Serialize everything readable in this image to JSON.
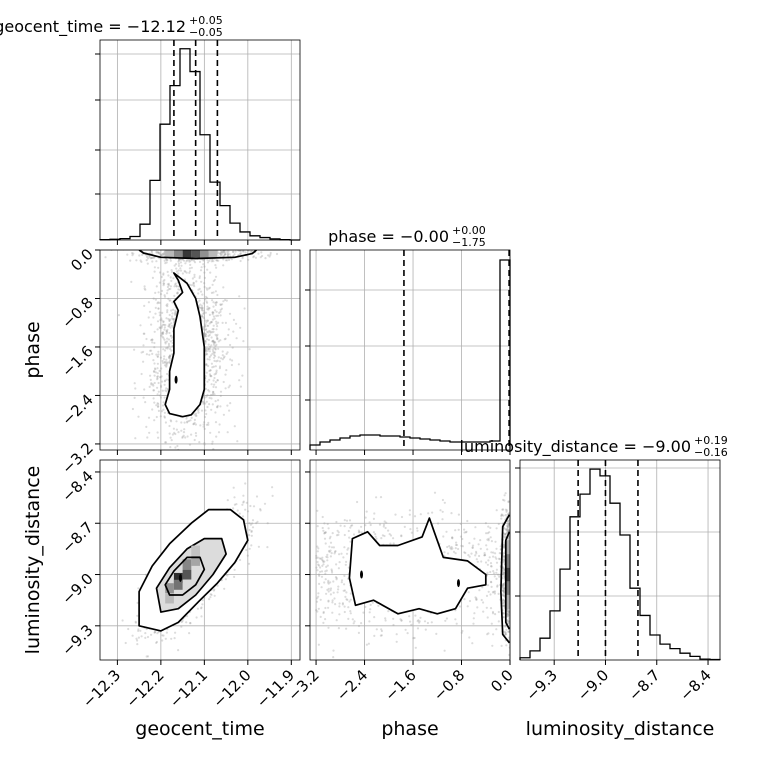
{
  "figure": {
    "type": "corner_plot",
    "background": "#ffffff",
    "colors": {
      "ink": "#000000",
      "grid": "#b0b0b0",
      "point": "#9a9a9a"
    }
  },
  "chart_data": [
    {
      "type": "histogram",
      "panel": "geocent_time",
      "title_main": "geocent_time = −12.12",
      "title_sup": "+0.05",
      "title_sub": "−0.05",
      "xlim": [
        -12.34,
        -11.88
      ],
      "bin_edges": [
        -12.34,
        -12.317,
        -12.294,
        -12.271,
        -12.248,
        -12.225,
        -12.202,
        -12.179,
        -12.156,
        -12.133,
        -12.11,
        -12.087,
        -12.064,
        -12.041,
        -12.018,
        -11.995,
        -11.972,
        -11.949,
        -11.926,
        -11.903,
        -11.88
      ],
      "counts": [
        1,
        2,
        4,
        10,
        45,
        170,
        330,
        440,
        545,
        480,
        300,
        165,
        98,
        48,
        23,
        12,
        7,
        3,
        1,
        0
      ],
      "ymax": 570,
      "quantiles": [
        -12.17,
        -12.12,
        -12.07
      ]
    },
    {
      "type": "histogram",
      "panel": "phase",
      "title_main": "phase = −0.00",
      "title_sup": "+0.00",
      "title_sub": "−1.75",
      "xlim": [
        -3.3,
        0.0
      ],
      "bin_edges": [
        -3.3,
        -3.135,
        -2.97,
        -2.805,
        -2.64,
        -2.475,
        -2.31,
        -2.145,
        -1.98,
        -1.815,
        -1.65,
        -1.485,
        -1.32,
        -1.155,
        -0.99,
        -0.825,
        -0.66,
        -0.495,
        -0.33,
        -0.165,
        0.0
      ],
      "counts": [
        5,
        8,
        10,
        12,
        14,
        15,
        15,
        14,
        14,
        13,
        12,
        11,
        10,
        9,
        8,
        8,
        8,
        8,
        9,
        190
      ],
      "ymax": 200,
      "quantiles": [
        -1.75,
        0.0,
        0.0
      ]
    },
    {
      "type": "histogram",
      "panel": "luminosity_distance",
      "title_main": "luminosity_distance = −9.00",
      "title_sup": "+0.19",
      "title_sub": "−0.16",
      "xlim": [
        -9.5,
        -8.33
      ],
      "bin_edges": [
        -9.5,
        -9.4415,
        -9.383,
        -9.3245,
        -9.266,
        -9.2075,
        -9.149,
        -9.0905,
        -9.032,
        -8.9735,
        -8.915,
        -8.8565,
        -8.798,
        -8.7395,
        -8.681,
        -8.6225,
        -8.564,
        -8.5055,
        -8.447,
        -8.3885,
        -8.33
      ],
      "counts": [
        5,
        20,
        48,
        108,
        200,
        315,
        365,
        420,
        405,
        345,
        275,
        158,
        98,
        55,
        35,
        25,
        15,
        8,
        2,
        1
      ],
      "ymax": 440,
      "quantiles": [
        -9.16,
        -9.0,
        -8.81
      ]
    },
    {
      "type": "scatter_contour",
      "panel": "phase vs geocent_time",
      "x": "geocent_time",
      "y": "phase",
      "xlim": [
        -12.34,
        -11.88
      ],
      "ylim": [
        -3.3,
        0.0
      ],
      "outer_contour": [
        [
          -12.17,
          -0.38
        ],
        [
          -12.14,
          -0.55
        ],
        [
          -12.12,
          -0.8
        ],
        [
          -12.11,
          -1.1
        ],
        [
          -12.1,
          -1.6
        ],
        [
          -12.1,
          -2.1
        ],
        [
          -12.1,
          -2.3
        ],
        [
          -12.11,
          -2.55
        ],
        [
          -12.13,
          -2.72
        ],
        [
          -12.15,
          -2.75
        ],
        [
          -12.18,
          -2.7
        ],
        [
          -12.19,
          -2.55
        ],
        [
          -12.18,
          -2.3
        ],
        [
          -12.18,
          -2.0
        ],
        [
          -12.17,
          -1.7
        ],
        [
          -12.17,
          -1.3
        ],
        [
          -12.16,
          -1.0
        ],
        [
          -12.17,
          -0.85
        ],
        [
          -12.15,
          -0.7
        ],
        [
          -12.16,
          -0.5
        ]
      ],
      "top_band": [
        [
          -12.25,
          0.0
        ],
        [
          -12.24,
          -0.05
        ],
        [
          -12.2,
          -0.12
        ],
        [
          -12.12,
          -0.14
        ],
        [
          -12.03,
          -0.12
        ],
        [
          -11.99,
          -0.06
        ],
        [
          -11.98,
          0.0
        ]
      ],
      "inner_marks": [
        [
          -12.165,
          -2.14
        ]
      ],
      "density_blocks": [
        {
          "x": -12.14,
          "y": -0.05,
          "w": 0.02,
          "level": 0.9
        },
        {
          "x": -12.12,
          "y": -0.05,
          "w": 0.02,
          "level": 0.75
        },
        {
          "x": -12.16,
          "y": -0.05,
          "w": 0.02,
          "level": 0.5
        },
        {
          "x": -12.1,
          "y": -0.05,
          "w": 0.02,
          "level": 0.45
        },
        {
          "x": -12.18,
          "y": -0.05,
          "w": 0.02,
          "level": 0.25
        },
        {
          "x": -12.08,
          "y": -0.05,
          "w": 0.02,
          "level": 0.25
        }
      ],
      "scatter": {
        "mean": [
          -12.14,
          -1.6
        ],
        "spread": [
          0.045,
          0.75
        ],
        "n": 1500,
        "band_mean": [
          -12.12,
          -0.06
        ],
        "band_spread": [
          0.07,
          0.06
        ],
        "band_n": 500
      }
    },
    {
      "type": "scatter_contour",
      "panel": "luminosity_distance vs geocent_time",
      "x": "geocent_time",
      "y": "luminosity_distance",
      "xlim": [
        -12.34,
        -11.88
      ],
      "ylim": [
        -9.5,
        -8.33
      ],
      "contours": [
        [
          [
            -12.25,
            -9.3
          ],
          [
            -12.2,
            -9.33
          ],
          [
            -12.16,
            -9.28
          ],
          [
            -12.11,
            -9.15
          ],
          [
            -12.07,
            -9.05
          ],
          [
            -12.03,
            -8.93
          ],
          [
            -12.0,
            -8.8
          ],
          [
            -12.01,
            -8.68
          ],
          [
            -12.04,
            -8.62
          ],
          [
            -12.09,
            -8.62
          ],
          [
            -12.13,
            -8.7
          ],
          [
            -12.18,
            -8.82
          ],
          [
            -12.22,
            -8.95
          ],
          [
            -12.25,
            -9.1
          ]
        ],
        [
          [
            -12.2,
            -9.22
          ],
          [
            -12.16,
            -9.2
          ],
          [
            -12.12,
            -9.12
          ],
          [
            -12.08,
            -9.0
          ],
          [
            -12.05,
            -8.88
          ],
          [
            -12.06,
            -8.79
          ],
          [
            -12.1,
            -8.79
          ],
          [
            -12.14,
            -8.85
          ],
          [
            -12.18,
            -8.96
          ],
          [
            -12.21,
            -9.08
          ]
        ],
        [
          [
            -12.18,
            -9.12
          ],
          [
            -12.15,
            -9.12
          ],
          [
            -12.12,
            -9.06
          ],
          [
            -12.1,
            -8.97
          ],
          [
            -12.11,
            -8.9
          ],
          [
            -12.14,
            -8.9
          ],
          [
            -12.17,
            -8.98
          ],
          [
            -12.19,
            -9.06
          ]
        ]
      ],
      "inner_marks": [
        [
          -12.155,
          -9.02
        ]
      ],
      "density_blocks": [
        {
          "x": -12.16,
          "y": -9.02,
          "w": 0.02,
          "level": 0.95
        },
        {
          "x": -12.14,
          "y": -9.0,
          "w": 0.02,
          "level": 0.75
        },
        {
          "x": -12.16,
          "y": -9.06,
          "w": 0.02,
          "level": 0.6
        },
        {
          "x": -12.14,
          "y": -8.94,
          "w": 0.02,
          "level": 0.5
        },
        {
          "x": -12.18,
          "y": -9.08,
          "w": 0.02,
          "level": 0.45
        },
        {
          "x": -12.12,
          "y": -8.92,
          "w": 0.02,
          "level": 0.35
        },
        {
          "x": -12.18,
          "y": -9.14,
          "w": 0.02,
          "level": 0.25
        },
        {
          "x": -12.12,
          "y": -8.86,
          "w": 0.02,
          "level": 0.2
        }
      ],
      "scatter": {
        "mean": [
          -12.12,
          -8.99
        ],
        "spread": [
          0.055,
          0.16
        ],
        "corr": 0.8,
        "n": 1700
      }
    },
    {
      "type": "scatter_contour",
      "panel": "luminosity_distance vs phase",
      "x": "phase",
      "y": "luminosity_distance",
      "xlim": [
        -3.3,
        0.0
      ],
      "ylim": [
        -9.5,
        -8.33
      ],
      "outer_contour": [
        [
          -2.6,
          -8.79
        ],
        [
          -2.35,
          -8.75
        ],
        [
          -2.15,
          -8.83
        ],
        [
          -1.85,
          -8.83
        ],
        [
          -1.45,
          -8.78
        ],
        [
          -1.33,
          -8.67
        ],
        [
          -1.25,
          -8.75
        ],
        [
          -1.1,
          -8.9
        ],
        [
          -0.7,
          -8.92
        ],
        [
          -0.4,
          -9.0
        ],
        [
          -0.4,
          -9.06
        ],
        [
          -0.7,
          -9.08
        ],
        [
          -0.9,
          -9.2
        ],
        [
          -1.2,
          -9.23
        ],
        [
          -1.5,
          -9.2
        ],
        [
          -1.85,
          -9.23
        ],
        [
          -2.25,
          -9.15
        ],
        [
          -2.55,
          -9.18
        ],
        [
          -2.65,
          -9.02
        ]
      ],
      "edge_band": [
        [
          -0.01,
          -8.65
        ],
        [
          -0.12,
          -8.72
        ],
        [
          -0.15,
          -9.1
        ],
        [
          -0.12,
          -9.35
        ],
        [
          -0.01,
          -9.4
        ]
      ],
      "edge_inner": [
        [
          -0.01,
          -8.75
        ],
        [
          -0.07,
          -8.8
        ],
        [
          -0.07,
          -9.28
        ],
        [
          -0.01,
          -9.32
        ]
      ],
      "inner_marks": [
        [
          -2.45,
          -9.0
        ],
        [
          -0.85,
          -9.05
        ]
      ],
      "density_blocks": [
        {
          "x": -0.04,
          "y": -9.0,
          "w": 0.08,
          "level": 0.85
        },
        {
          "x": -0.04,
          "y": -8.92,
          "w": 0.08,
          "level": 0.55
        },
        {
          "x": -0.04,
          "y": -9.08,
          "w": 0.08,
          "level": 0.55
        },
        {
          "x": -0.04,
          "y": -8.84,
          "w": 0.08,
          "level": 0.3
        },
        {
          "x": -0.04,
          "y": -9.16,
          "w": 0.08,
          "level": 0.3
        }
      ],
      "scatter": {
        "spread_y": 0.17,
        "mean_y": -9.0,
        "n": 1600,
        "edge_fraction": 0.4
      }
    }
  ],
  "axes": {
    "geocent_time": {
      "label": "geocent_time",
      "ticks": [
        -12.3,
        -12.2,
        -12.1,
        -12.0,
        -11.9
      ],
      "tick_labels": [
        "−12.3",
        "−12.2",
        "−12.1",
        "−12.0",
        "−11.9"
      ]
    },
    "phase": {
      "label": "phase",
      "ticks": [
        -3.2,
        -2.4,
        -1.6,
        -0.8,
        0.0
      ],
      "tick_labels": [
        "−3.2",
        "−2.4",
        "−1.6",
        "−0.8",
        "0.0"
      ]
    },
    "luminosity_distance": {
      "label": "luminosity_distance",
      "ticks": [
        -9.3,
        -9.0,
        -8.7,
        -8.4
      ],
      "tick_labels": [
        "−9.3",
        "−9.0",
        "−8.7",
        "−8.4"
      ]
    }
  }
}
